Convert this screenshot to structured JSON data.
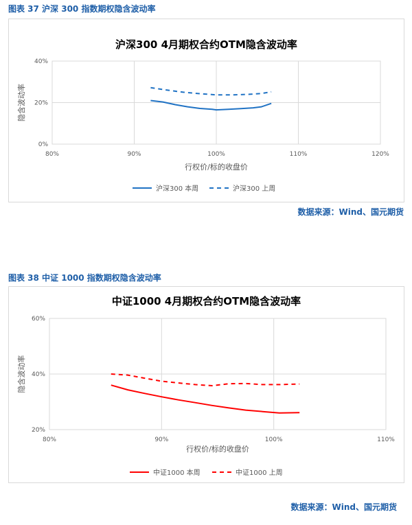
{
  "figures": [
    {
      "label": "图表 37 沪深 300 指数期权隐含波动率",
      "source": "数据来源：Wind、国元期货"
    },
    {
      "label": "图表 38 中证 1000 指数期权隐含波动率",
      "source": "数据来源：Wind、国元期货"
    }
  ],
  "chart_data": [
    {
      "type": "line",
      "title": "沪深300 4月期权合约OTM隐含波动率",
      "xlabel": "行权价/标的收盘价",
      "ylabel": "隐含波动率",
      "xlim": [
        0.8,
        1.2
      ],
      "ylim": [
        0,
        0.4
      ],
      "x_ticks": [
        0.8,
        0.9,
        1.0,
        1.1,
        1.2
      ],
      "x_tick_labels": [
        "80%",
        "90%",
        "100%",
        "110%",
        "120%"
      ],
      "y_ticks": [
        0,
        0.2,
        0.4
      ],
      "y_tick_labels": [
        "0%",
        "20%",
        "40%"
      ],
      "grid": "vertical and horizontal",
      "legend": "bottom",
      "series": [
        {
          "name": "沪深300 本周",
          "style": "solid",
          "color": "#1f72c4",
          "x": [
            0.92,
            0.935,
            0.95,
            0.965,
            0.98,
            0.995,
            1.0,
            1.015,
            1.03,
            1.045,
            1.055,
            1.067
          ],
          "y": [
            0.21,
            0.203,
            0.19,
            0.18,
            0.172,
            0.168,
            0.165,
            0.168,
            0.171,
            0.175,
            0.18,
            0.196
          ]
        },
        {
          "name": "沪深300 上周",
          "style": "dashed",
          "color": "#1f72c4",
          "x": [
            0.92,
            0.94,
            0.96,
            0.98,
            1.0,
            1.02,
            1.04,
            1.055,
            1.067
          ],
          "y": [
            0.272,
            0.26,
            0.25,
            0.243,
            0.237,
            0.237,
            0.24,
            0.244,
            0.252
          ]
        }
      ]
    },
    {
      "type": "line",
      "title": "中证1000 4月期权合约OTM隐含波动率",
      "xlabel": "行权价/标的收盘价",
      "ylabel": "隐含波动率",
      "xlim": [
        0.8,
        1.1
      ],
      "ylim": [
        0.2,
        0.6
      ],
      "x_ticks": [
        0.8,
        0.9,
        1.0,
        1.1
      ],
      "x_tick_labels": [
        "80%",
        "90%",
        "100%",
        "110%"
      ],
      "y_ticks": [
        0.2,
        0.4,
        0.6
      ],
      "y_tick_labels": [
        "20%",
        "40%",
        "60%"
      ],
      "grid": "vertical and horizontal",
      "legend": "bottom",
      "series": [
        {
          "name": "中证1000 本周",
          "style": "solid",
          "color": "#ff0000",
          "x": [
            0.855,
            0.87,
            0.885,
            0.9,
            0.915,
            0.93,
            0.945,
            0.96,
            0.975,
            0.99,
            1.005,
            1.023
          ],
          "y": [
            0.36,
            0.343,
            0.33,
            0.318,
            0.307,
            0.297,
            0.287,
            0.278,
            0.27,
            0.265,
            0.26,
            0.261
          ]
        },
        {
          "name": "中证1000 上周",
          "style": "dashed",
          "color": "#ff0000",
          "x": [
            0.855,
            0.87,
            0.885,
            0.9,
            0.915,
            0.93,
            0.945,
            0.96,
            0.975,
            0.99,
            1.005,
            1.023
          ],
          "y": [
            0.4,
            0.396,
            0.385,
            0.374,
            0.368,
            0.362,
            0.358,
            0.365,
            0.366,
            0.362,
            0.362,
            0.364
          ]
        }
      ]
    }
  ]
}
